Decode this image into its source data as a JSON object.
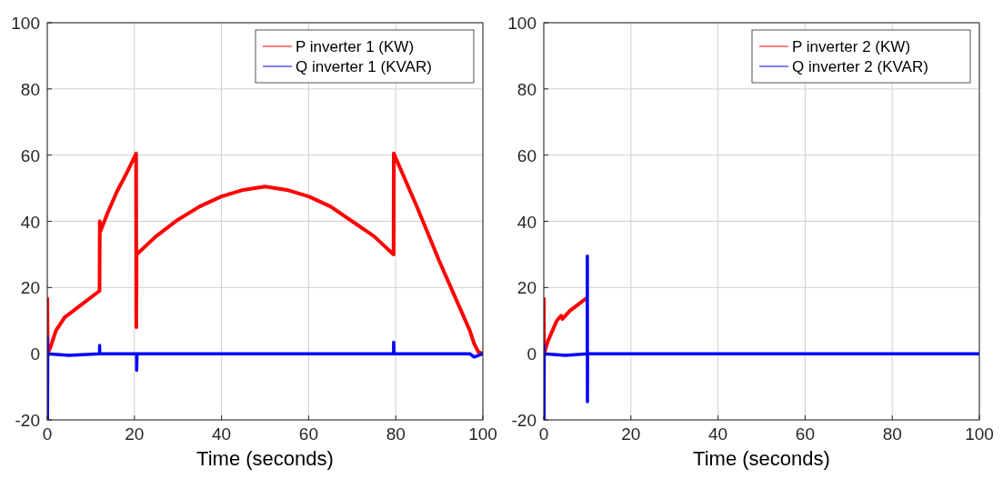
{
  "chart_data": [
    {
      "type": "line",
      "xlabel": "Time (seconds)",
      "xlim": [
        0,
        100
      ],
      "xticks": [
        0,
        20,
        40,
        60,
        80,
        100
      ],
      "ylim": [
        -20,
        100
      ],
      "yticks": [
        -20,
        0,
        20,
        40,
        60,
        80,
        100
      ],
      "grid": true,
      "legend": "top right",
      "series": [
        {
          "name": "P inverter 1 (KW)",
          "color": "#ff0000",
          "x": [
            0,
            0.1,
            1,
            2,
            3,
            4,
            6,
            8,
            10,
            12,
            12.05,
            12.2,
            14,
            16,
            18,
            20.4,
            20.45,
            20.5,
            25,
            30,
            35,
            40,
            45,
            50,
            55,
            60,
            65,
            70,
            75,
            79.5,
            79.55,
            85,
            90,
            95,
            97,
            98,
            99,
            100
          ],
          "values": [
            17,
            0,
            3,
            7,
            9,
            11,
            13,
            15,
            17,
            19,
            40,
            37,
            43,
            49,
            54,
            60.5,
            8,
            30,
            35.5,
            40.5,
            44.5,
            47.5,
            49.5,
            50.5,
            49.5,
            47.5,
            44.5,
            40,
            35.5,
            30,
            60.5,
            44,
            28,
            13,
            7,
            3,
            0.5,
            0
          ]
        },
        {
          "name": "Q inverter 1 (KVAR)",
          "color": "#0000ff",
          "x": [
            0,
            0.05,
            0.1,
            5,
            12,
            12.02,
            12.05,
            20.5,
            20.52,
            20.6,
            79.5,
            79.52,
            79.6,
            97,
            98,
            100
          ],
          "values": [
            5,
            -20,
            0,
            -0.5,
            0,
            2.5,
            0,
            0,
            -5,
            0,
            0,
            3.5,
            0,
            0,
            -1,
            0
          ]
        }
      ]
    },
    {
      "type": "line",
      "xlabel": "Time (seconds)",
      "xlim": [
        0,
        100
      ],
      "xticks": [
        0,
        20,
        40,
        60,
        80,
        100
      ],
      "ylim": [
        -20,
        100
      ],
      "yticks": [
        -20,
        0,
        20,
        40,
        60,
        80,
        100
      ],
      "grid": true,
      "legend": "top right",
      "series": [
        {
          "name": "P inverter 2 (KW)",
          "color": "#ff0000",
          "x": [
            0,
            0.05,
            1,
            2,
            3,
            4,
            4.3,
            6,
            8,
            10
          ],
          "values": [
            17,
            0,
            4,
            7,
            10,
            11.5,
            10.5,
            13,
            15,
            17
          ]
        },
        {
          "name": "Q inverter 2 (KVAR)",
          "color": "#0000ff",
          "x": [
            0,
            0.05,
            0.1,
            5,
            9.98,
            10,
            10.02,
            10.05,
            100
          ],
          "values": [
            3,
            -20,
            0,
            -0.5,
            0,
            29.5,
            -14.5,
            0,
            0
          ]
        }
      ]
    }
  ]
}
